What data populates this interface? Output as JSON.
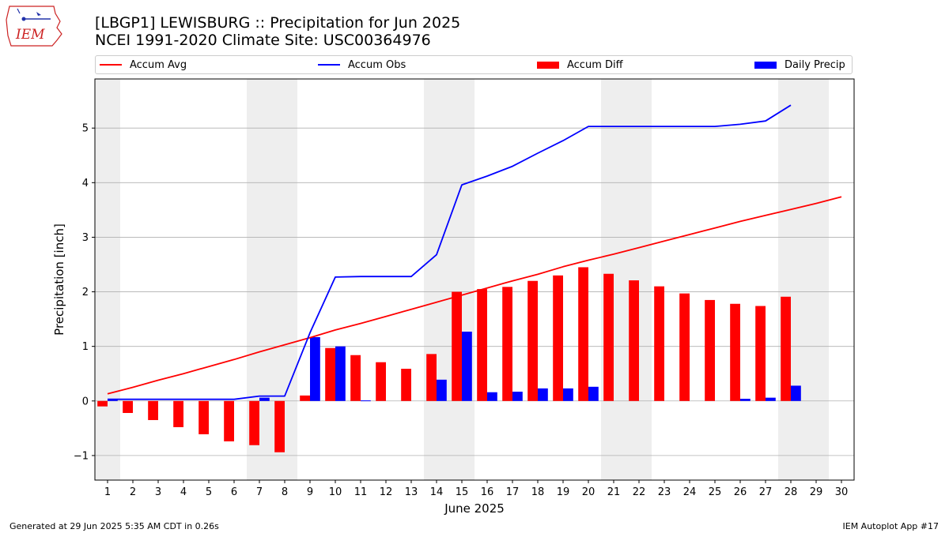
{
  "header": {
    "title_line1": "[LBGP1] LEWISBURG :: Precipitation for Jun 2025",
    "title_line2": "NCEI 1991-2020 Climate Site: USC00364976",
    "logo_text": "IEM"
  },
  "footer": {
    "left": "Generated at 29 Jun 2025 5:35 AM CDT in 0.26s",
    "right": "IEM Autoplot App #17"
  },
  "legend": {
    "accum_avg": "Accum Avg",
    "accum_obs": "Accum Obs",
    "accum_diff": "Accum Diff",
    "daily_precip": "Daily Precip"
  },
  "colors": {
    "accum_avg": "#ff0000",
    "accum_obs": "#0000ff",
    "accum_diff": "#ff0000",
    "daily_precip": "#0000ff",
    "weekend_shade": "#eeeeee",
    "grid": "#b0b0b0"
  },
  "chart_data": {
    "type": "bar",
    "xlabel": "June 2025",
    "ylabel": "Precipitation [inch]",
    "ylim": [
      -1.45,
      5.9
    ],
    "yticks": [
      -1,
      0,
      1,
      2,
      3,
      4,
      5
    ],
    "grid": "horizontal",
    "legend_position": "top",
    "days": [
      1,
      2,
      3,
      4,
      5,
      6,
      7,
      8,
      9,
      10,
      11,
      12,
      13,
      14,
      15,
      16,
      17,
      18,
      19,
      20,
      21,
      22,
      23,
      24,
      25,
      26,
      27,
      28,
      29,
      30
    ],
    "shaded_days": [
      1,
      7,
      8,
      14,
      15,
      21,
      22,
      28,
      29
    ],
    "series": [
      {
        "name": "Accum Avg",
        "type": "line",
        "values": [
          0.13,
          0.25,
          0.38,
          0.5,
          0.63,
          0.76,
          0.9,
          1.03,
          1.16,
          1.3,
          1.42,
          1.55,
          1.68,
          1.81,
          1.94,
          2.07,
          2.2,
          2.32,
          2.46,
          2.58,
          2.69,
          2.81,
          2.93,
          3.05,
          3.17,
          3.29,
          3.4,
          3.51,
          3.62,
          3.74
        ]
      },
      {
        "name": "Accum Obs",
        "type": "line",
        "values": [
          0.03,
          0.03,
          0.03,
          0.03,
          0.03,
          0.03,
          0.09,
          0.09,
          1.25,
          2.27,
          2.28,
          2.28,
          2.28,
          2.68,
          3.96,
          4.12,
          4.3,
          4.54,
          4.77,
          5.03,
          5.03,
          5.03,
          5.03,
          5.03,
          5.03,
          5.07,
          5.13,
          5.42
        ]
      },
      {
        "name": "Accum Diff",
        "type": "bar",
        "values": [
          -0.1,
          -0.22,
          -0.35,
          -0.48,
          -0.61,
          -0.74,
          -0.81,
          -0.94,
          0.1,
          0.97,
          0.84,
          0.71,
          0.59,
          0.86,
          2.0,
          2.05,
          2.09,
          2.2,
          2.3,
          2.45,
          2.33,
          2.21,
          2.1,
          1.97,
          1.85,
          1.78,
          1.74,
          1.91
        ]
      },
      {
        "name": "Daily Precip",
        "type": "bar",
        "values": [
          0.03,
          0,
          0,
          0,
          0,
          0,
          0.06,
          0,
          1.17,
          1.0,
          0.01,
          0,
          0,
          0.39,
          1.27,
          0.16,
          0.17,
          0.23,
          0.23,
          0.26,
          0,
          0,
          0,
          0,
          0,
          0.04,
          0.06,
          0.28
        ]
      }
    ]
  }
}
